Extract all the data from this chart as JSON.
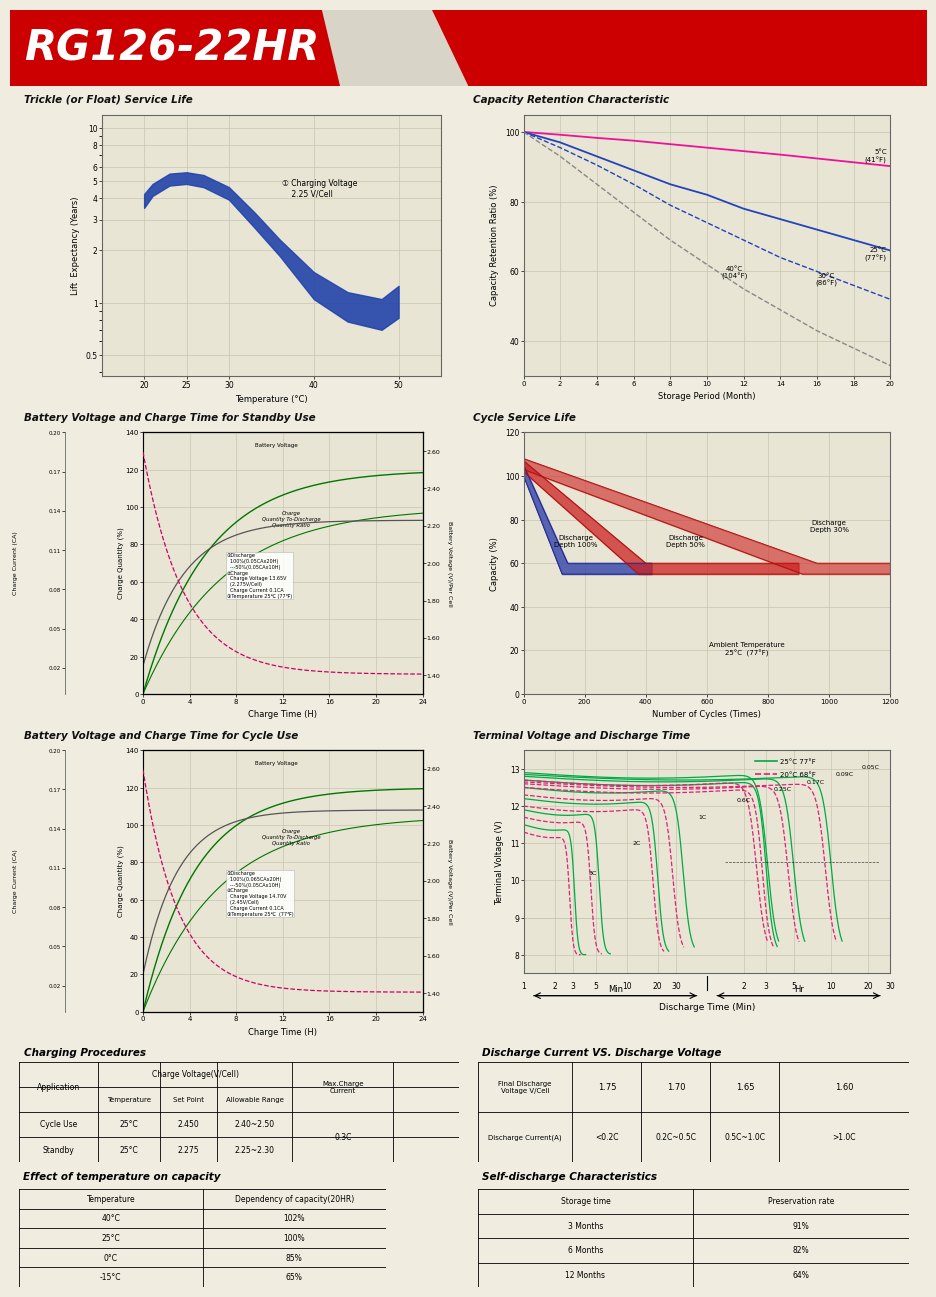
{
  "title": "RG126-22HR",
  "section_titles": {
    "trickle": "Trickle (or Float) Service Life",
    "capacity_ret": "Capacity Retention Characteristic",
    "batt_standby": "Battery Voltage and Charge Time for Standby Use",
    "cycle_life": "Cycle Service Life",
    "batt_cycle": "Battery Voltage and Charge Time for Cycle Use",
    "terminal_volt": "Terminal Voltage and Discharge Time",
    "charging_proc": "Charging Procedures",
    "discharge_cv": "Discharge Current VS. Discharge Voltage",
    "temp_effect": "Effect of temperature on capacity",
    "self_discharge": "Self-discharge Characteristics"
  }
}
